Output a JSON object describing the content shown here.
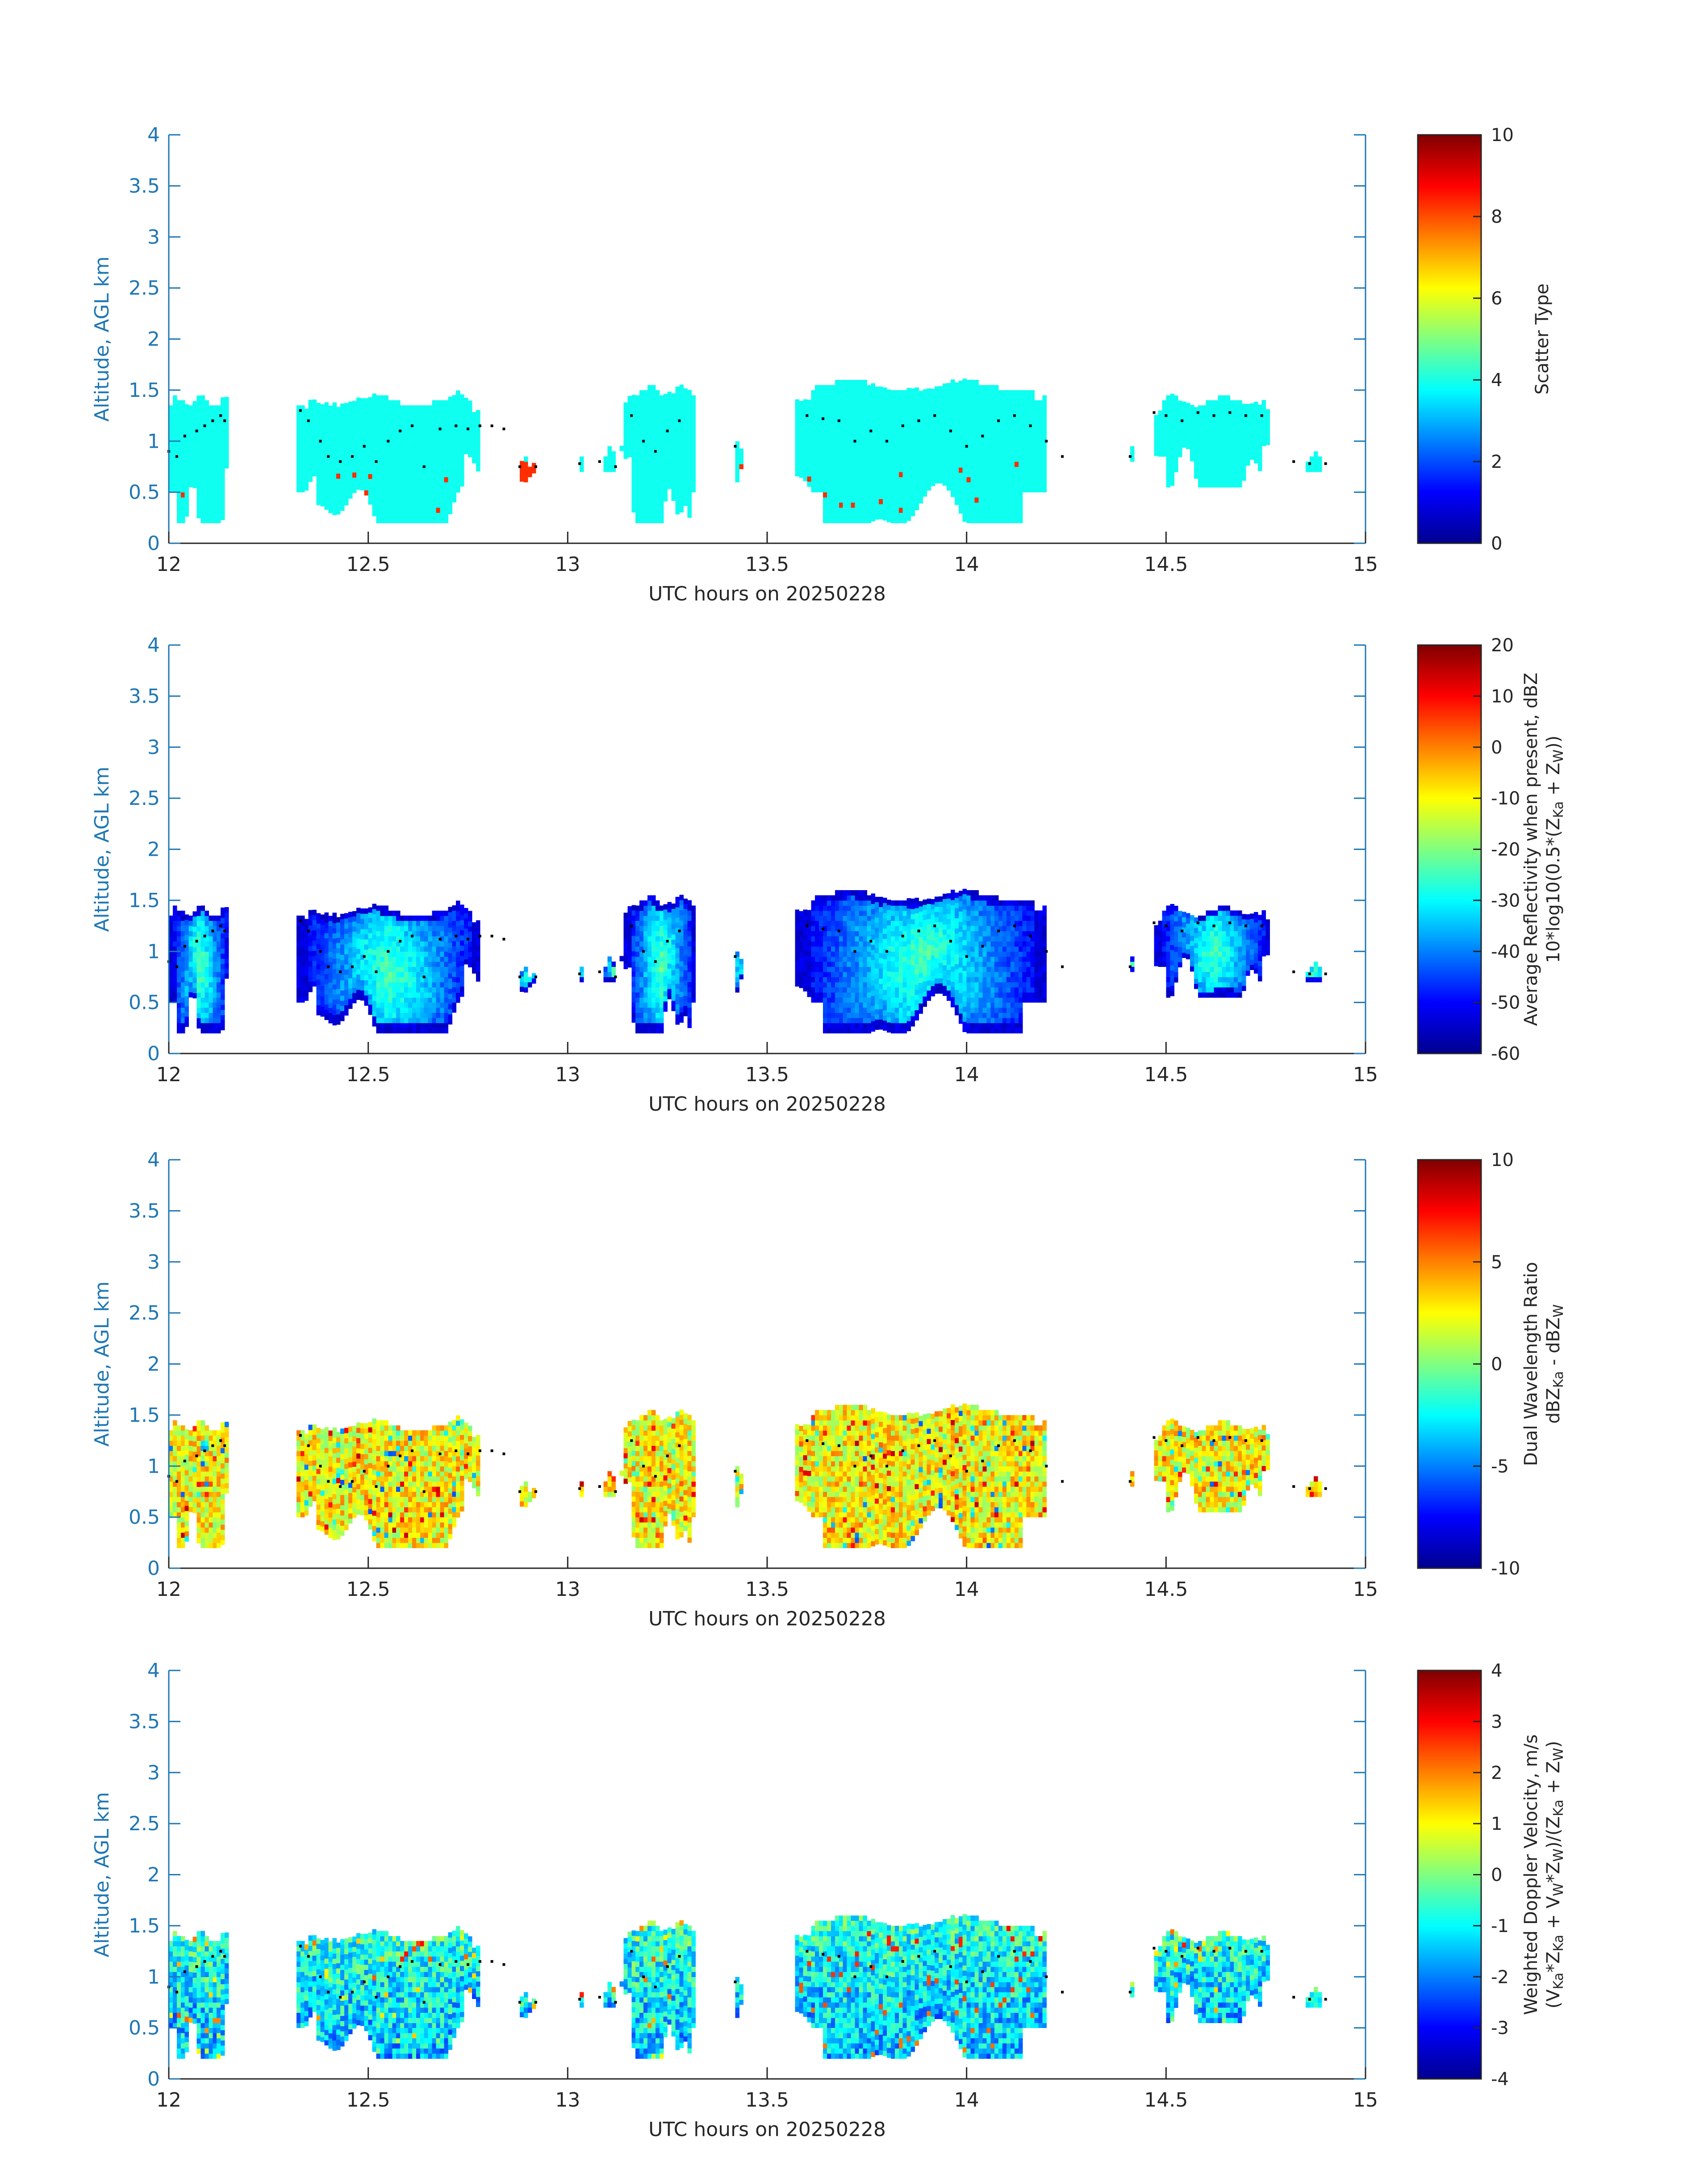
{
  "colors": {
    "axis": "#1f77b4",
    "text": "#262626",
    "jet": [
      "#00008f",
      "#0000ff",
      "#0080ff",
      "#00ffff",
      "#80ff80",
      "#ffff00",
      "#ff8000",
      "#ff0000",
      "#800000"
    ]
  },
  "chart_data": [
    {
      "type": "heatmap",
      "panel": "scatter-type",
      "xlabel": "UTC hours on 20250228",
      "ylabel": "Altitude, AGL km",
      "xlim": [
        12,
        15
      ],
      "ylim": [
        0,
        4
      ],
      "x_ticks": [
        "12",
        "12.5",
        "13",
        "13.5",
        "14",
        "14.5",
        "15"
      ],
      "y_ticks": [
        "0",
        "0.5",
        "1",
        "1.5",
        "2",
        "2.5",
        "3",
        "3.5",
        "4"
      ],
      "colorbar": {
        "label_lines": [
          "Scatter Type"
        ],
        "range": [
          0,
          10
        ],
        "ticks": [
          "0",
          "2",
          "4",
          "6",
          "8",
          "10"
        ]
      },
      "field": "scatter",
      "value_scale": [
        0,
        10
      ],
      "dominant_value": 3.9,
      "rare_value": 8.3
    },
    {
      "type": "heatmap",
      "panel": "reflectivity",
      "xlabel": "UTC hours on 20250228",
      "ylabel": "Altitude, AGL km",
      "xlim": [
        12,
        15
      ],
      "ylim": [
        0,
        4
      ],
      "x_ticks": [
        "12",
        "12.5",
        "13",
        "13.5",
        "14",
        "14.5",
        "15"
      ],
      "y_ticks": [
        "0",
        "0.5",
        "1",
        "1.5",
        "2",
        "2.5",
        "3",
        "3.5",
        "4"
      ],
      "colorbar": {
        "label_lines": [
          "Average Reflectivity when present, dBZ",
          "10*log10(0.5*(Z<sub>Ka</sub> + Z<sub>W</sub>))"
        ],
        "range": [
          -60,
          20
        ],
        "ticks": [
          "-60",
          "-50",
          "-40",
          "-30",
          "-20",
          "-10",
          "0",
          "10",
          "20"
        ]
      },
      "field": "reflectivity",
      "value_scale": [
        -60,
        20
      ],
      "value_range_shown": [
        -58,
        -18
      ]
    },
    {
      "type": "heatmap",
      "panel": "dual-wavelength-ratio",
      "xlabel": "UTC hours on 20250228",
      "ylabel": "Altitude, AGL km",
      "xlim": [
        12,
        15
      ],
      "ylim": [
        0,
        4
      ],
      "x_ticks": [
        "12",
        "12.5",
        "13",
        "13.5",
        "14",
        "14.5",
        "15"
      ],
      "y_ticks": [
        "0",
        "0.5",
        "1",
        "1.5",
        "2",
        "2.5",
        "3",
        "3.5",
        "4"
      ],
      "colorbar": {
        "label_lines": [
          "Dual Wavelength Ratio",
          "dBZ<sub>Ka</sub> - dBZ<sub>W</sub>"
        ],
        "range": [
          -10,
          10
        ],
        "ticks": [
          "-10",
          "-5",
          "0",
          "5",
          "10"
        ]
      },
      "field": "dwr",
      "value_scale": [
        -10,
        10
      ],
      "value_range_shown": [
        -4,
        9
      ]
    },
    {
      "type": "heatmap",
      "panel": "doppler-velocity",
      "xlabel": "UTC hours on 20250228",
      "ylabel": "Altitude, AGL km",
      "xlim": [
        12,
        15
      ],
      "ylim": [
        0,
        4
      ],
      "x_ticks": [
        "12",
        "12.5",
        "13",
        "13.5",
        "14",
        "14.5",
        "15"
      ],
      "y_ticks": [
        "0",
        "0.5",
        "1",
        "1.5",
        "2",
        "2.5",
        "3",
        "3.5",
        "4"
      ],
      "colorbar": {
        "label_lines": [
          "Weighted Doppler Velocity, m/s",
          "(V<sub>Ka</sub>*Z<sub>Ka</sub> + V<sub>W</sub>*Z<sub>W</sub>)/(Z<sub>Ka</sub> + Z<sub>W</sub>)"
        ],
        "range": [
          -4,
          4
        ],
        "ticks": [
          "-4",
          "-3",
          "-2",
          "-1",
          "0",
          "1",
          "2",
          "3",
          "4"
        ]
      },
      "field": "velocity",
      "value_scale": [
        -4,
        4
      ],
      "value_range_shown": [
        -3.5,
        2
      ]
    }
  ],
  "cloud_top_markers": {
    "description": "black dots",
    "x": [
      12.0,
      12.02,
      12.04,
      12.07,
      12.09,
      12.11,
      12.13,
      12.14,
      12.33,
      12.35,
      12.38,
      12.4,
      12.43,
      12.46,
      12.49,
      12.52,
      12.55,
      12.58,
      12.61,
      12.64,
      12.68,
      12.72,
      12.75,
      12.78,
      12.81,
      12.84,
      12.88,
      12.92,
      13.03,
      13.08,
      13.12,
      13.16,
      13.19,
      13.22,
      13.25,
      13.28,
      13.42,
      13.6,
      13.64,
      13.68,
      13.72,
      13.76,
      13.8,
      13.84,
      13.88,
      13.92,
      13.96,
      14.0,
      14.04,
      14.08,
      14.12,
      14.16,
      14.2,
      14.24,
      14.41,
      14.47,
      14.5,
      14.54,
      14.58,
      14.62,
      14.66,
      14.7,
      14.74,
      14.82,
      14.86,
      14.9
    ],
    "y": [
      0.9,
      0.85,
      1.05,
      1.1,
      1.15,
      1.2,
      1.25,
      1.2,
      1.3,
      1.2,
      1.0,
      0.85,
      0.8,
      0.85,
      0.95,
      0.8,
      1.0,
      1.1,
      1.15,
      0.75,
      1.12,
      1.15,
      1.12,
      1.15,
      1.15,
      1.12,
      0.75,
      0.75,
      0.78,
      0.8,
      0.75,
      1.25,
      1.0,
      0.9,
      1.1,
      1.2,
      0.95,
      1.25,
      1.22,
      1.2,
      1.0,
      1.1,
      1.0,
      1.15,
      1.2,
      1.25,
      1.1,
      0.95,
      1.05,
      1.2,
      1.25,
      1.15,
      1.0,
      0.85,
      0.85,
      1.28,
      1.25,
      1.2,
      1.28,
      1.25,
      1.28,
      1.25,
      1.25,
      0.8,
      0.78,
      0.78
    ]
  }
}
